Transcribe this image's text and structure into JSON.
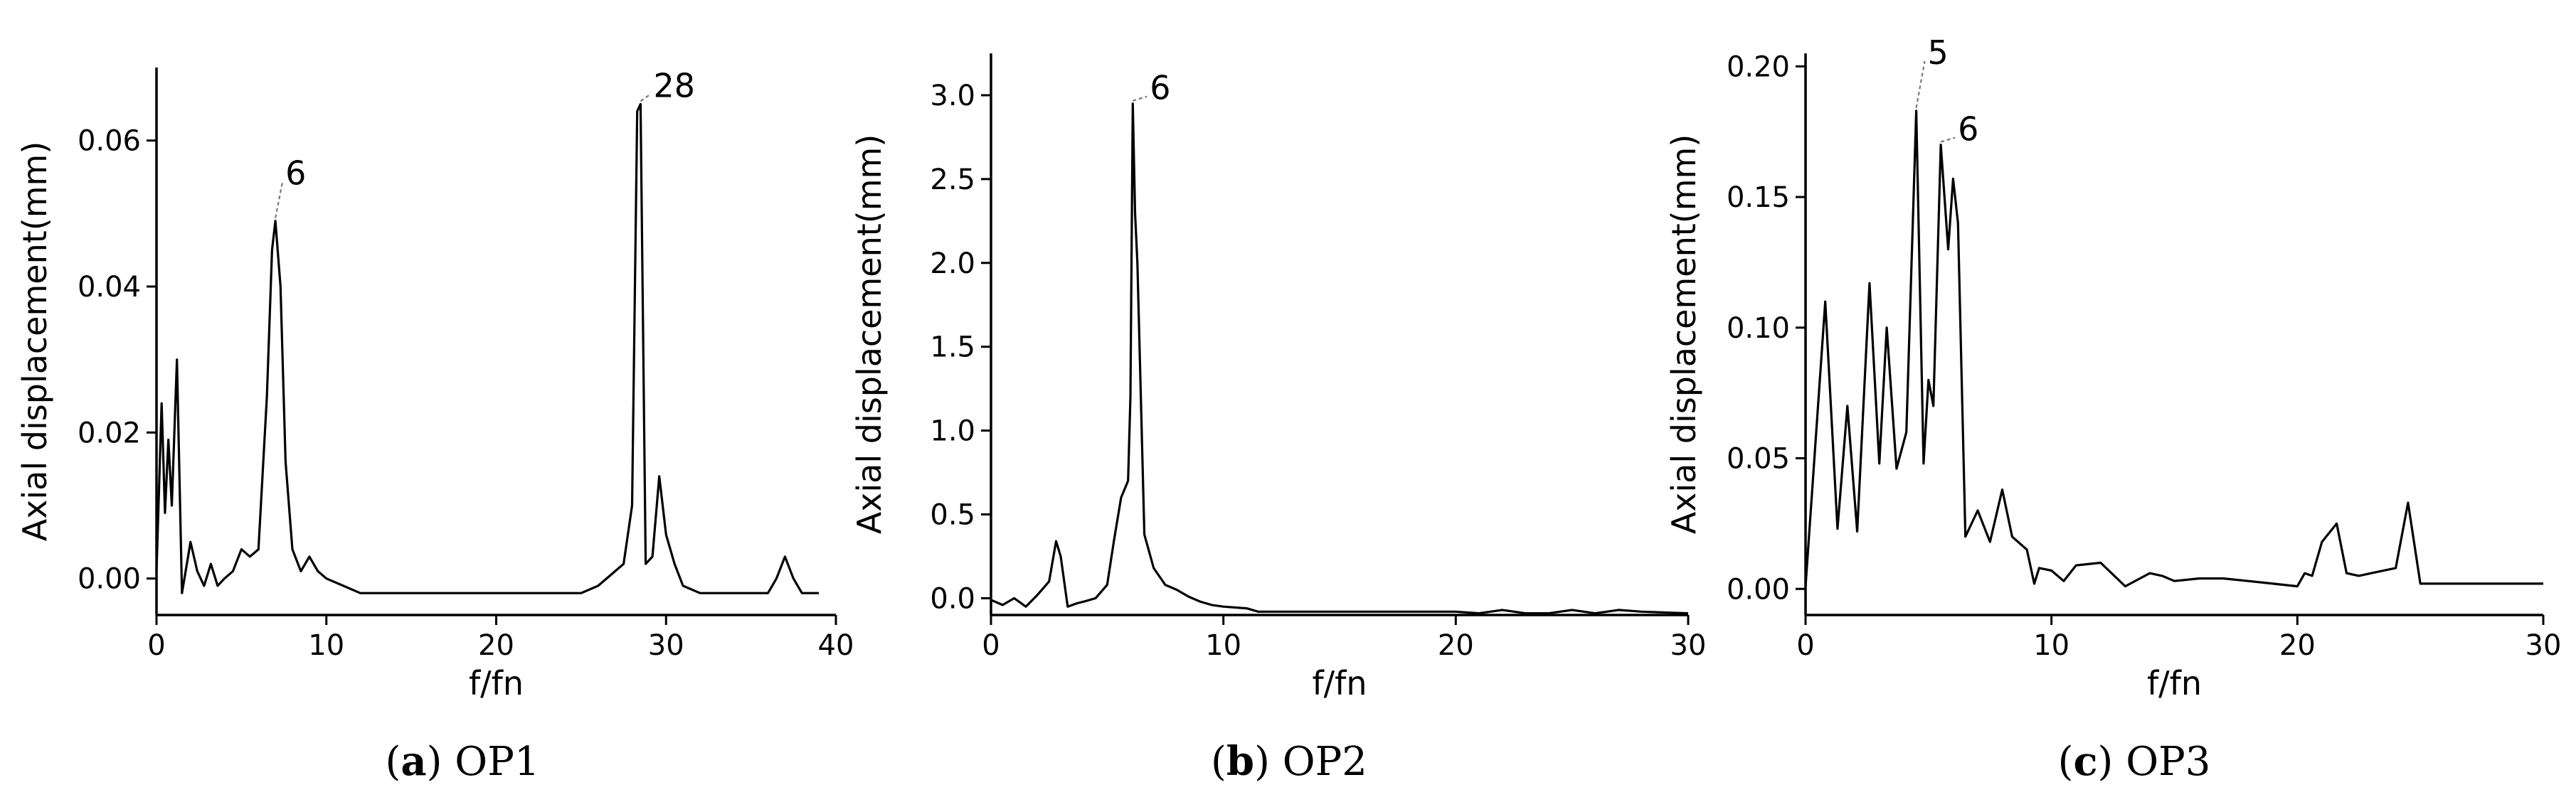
{
  "chart_data": [
    {
      "type": "line",
      "caption_letter": "a",
      "caption_text": "OP1",
      "xlabel": "f/fn",
      "ylabel": "Axial displacement(mm)",
      "xlim": [
        0,
        40
      ],
      "ylim": [
        -0.005,
        0.07
      ],
      "xticks": [
        0,
        10,
        20,
        30,
        40
      ],
      "xtick_labels": [
        "0",
        "10",
        "20",
        "30",
        "40"
      ],
      "yticks": [
        0,
        0.02,
        0.04,
        0.06
      ],
      "ytick_labels": [
        "0.00",
        "0.02",
        "0.04",
        "0.06"
      ],
      "x": [
        0,
        0.3,
        0.5,
        0.7,
        0.9,
        1.2,
        1.5,
        2.0,
        2.4,
        2.8,
        3.2,
        3.6,
        4.0,
        4.5,
        5.0,
        5.5,
        6.0,
        6.5,
        6.8,
        7.0,
        7.3,
        7.6,
        8.0,
        8.5,
        9.0,
        9.5,
        10.0,
        11,
        12,
        13,
        14,
        15,
        16,
        18,
        20,
        22,
        24,
        25,
        26,
        27.5,
        28.0,
        28.3,
        28.5,
        28.8,
        29.2,
        29.6,
        30.0,
        30.5,
        31,
        32,
        34,
        35,
        36,
        36.5,
        37,
        37.5,
        38,
        39
      ],
      "y": [
        0.001,
        0.024,
        0.009,
        0.019,
        0.01,
        0.03,
        -0.002,
        0.005,
        0.001,
        -0.001,
        0.002,
        -0.001,
        0.0,
        0.001,
        0.004,
        0.003,
        0.004,
        0.025,
        0.045,
        0.049,
        0.04,
        0.016,
        0.004,
        0.001,
        0.003,
        0.001,
        0.0,
        -0.001,
        -0.002,
        -0.002,
        -0.002,
        -0.002,
        -0.002,
        -0.002,
        -0.002,
        -0.002,
        -0.002,
        -0.002,
        -0.001,
        0.002,
        0.01,
        0.064,
        0.065,
        0.002,
        0.003,
        0.014,
        0.006,
        0.002,
        -0.001,
        -0.002,
        -0.002,
        -0.002,
        -0.002,
        0.0,
        0.003,
        0.0,
        -0.002,
        -0.002
      ],
      "annotations": [
        {
          "text": "6",
          "x": 7.0,
          "y": 0.049
        },
        {
          "text": "28",
          "x": 28.5,
          "y": 0.065
        }
      ]
    },
    {
      "type": "line",
      "caption_letter": "b",
      "caption_text": "OP2",
      "xlabel": "f/fn",
      "ylabel": "Axial displacement(mm)",
      "xlim": [
        0,
        30
      ],
      "ylim": [
        -0.1,
        3.25
      ],
      "xticks": [
        0,
        10,
        20,
        30
      ],
      "xtick_labels": [
        "0",
        "10",
        "20",
        "30"
      ],
      "yticks": [
        0,
        0.5,
        1.0,
        1.5,
        2.0,
        2.5,
        3.0
      ],
      "ytick_labels": [
        "0.0",
        "0.5",
        "1.0",
        "1.5",
        "2.0",
        "2.5",
        "3.0"
      ],
      "x": [
        0,
        0.5,
        1.0,
        1.5,
        2.0,
        2.5,
        2.8,
        3.0,
        3.3,
        3.7,
        4.0,
        4.5,
        5.0,
        5.3,
        5.6,
        5.9,
        6.0,
        6.1,
        6.2,
        6.3,
        6.6,
        7.0,
        7.5,
        8.0,
        8.5,
        9.0,
        9.5,
        10,
        11,
        11.5,
        12,
        15,
        18,
        20,
        21,
        22,
        23,
        24,
        25,
        26,
        26.5,
        27,
        28,
        30
      ],
      "y": [
        -0.01,
        -0.04,
        0.0,
        -0.05,
        0.02,
        0.1,
        0.34,
        0.25,
        -0.05,
        -0.03,
        -0.02,
        0.0,
        0.08,
        0.35,
        0.6,
        0.7,
        1.2,
        2.95,
        2.3,
        2.0,
        0.38,
        0.18,
        0.08,
        0.05,
        0.01,
        -0.02,
        -0.04,
        -0.05,
        -0.06,
        -0.08,
        -0.08,
        -0.08,
        -0.08,
        -0.08,
        -0.09,
        -0.07,
        -0.09,
        -0.09,
        -0.07,
        -0.09,
        -0.08,
        -0.07,
        -0.08,
        -0.09
      ],
      "annotations": [
        {
          "text": "6",
          "x": 6.1,
          "y": 2.95
        }
      ]
    },
    {
      "type": "line",
      "caption_letter": "c",
      "caption_text": "OP3",
      "xlabel": "f/fn",
      "ylabel": "Axial displacement(mm)",
      "xlim": [
        0,
        30
      ],
      "ylim": [
        -0.01,
        0.205
      ],
      "xticks": [
        0,
        10,
        20,
        30
      ],
      "xtick_labels": [
        "0",
        "10",
        "20",
        "30"
      ],
      "yticks": [
        0,
        0.05,
        0.1,
        0.15,
        0.2
      ],
      "ytick_labels": [
        "0.00",
        "0.05",
        "0.10",
        "0.15",
        "0.20"
      ],
      "x": [
        0,
        0.8,
        1.3,
        1.7,
        2.1,
        2.6,
        3.0,
        3.3,
        3.7,
        4.1,
        4.5,
        4.8,
        5.0,
        5.2,
        5.5,
        5.8,
        6.0,
        6.2,
        6.5,
        7.0,
        7.5,
        8.0,
        8.4,
        9.0,
        9.3,
        9.5,
        10,
        10.5,
        11,
        12,
        13,
        14,
        14.5,
        15,
        16,
        17,
        18,
        19,
        20,
        20.3,
        20.6,
        21,
        21.6,
        22,
        22.5,
        23,
        24,
        24.5,
        25,
        30
      ],
      "y": [
        0.001,
        0.11,
        0.023,
        0.07,
        0.022,
        0.117,
        0.048,
        0.1,
        0.046,
        0.06,
        0.183,
        0.048,
        0.08,
        0.07,
        0.17,
        0.13,
        0.157,
        0.14,
        0.02,
        0.03,
        0.018,
        0.038,
        0.02,
        0.015,
        0.002,
        0.008,
        0.007,
        0.003,
        0.009,
        0.01,
        0.001,
        0.006,
        0.005,
        0.003,
        0.004,
        0.004,
        0.003,
        0.002,
        0.001,
        0.006,
        0.005,
        0.018,
        0.025,
        0.006,
        0.005,
        0.006,
        0.008,
        0.033,
        0.002,
        0.002
      ],
      "annotations": [
        {
          "text": "5",
          "x": 4.5,
          "y": 0.183
        },
        {
          "text": "6",
          "x": 5.5,
          "y": 0.17
        }
      ]
    }
  ]
}
